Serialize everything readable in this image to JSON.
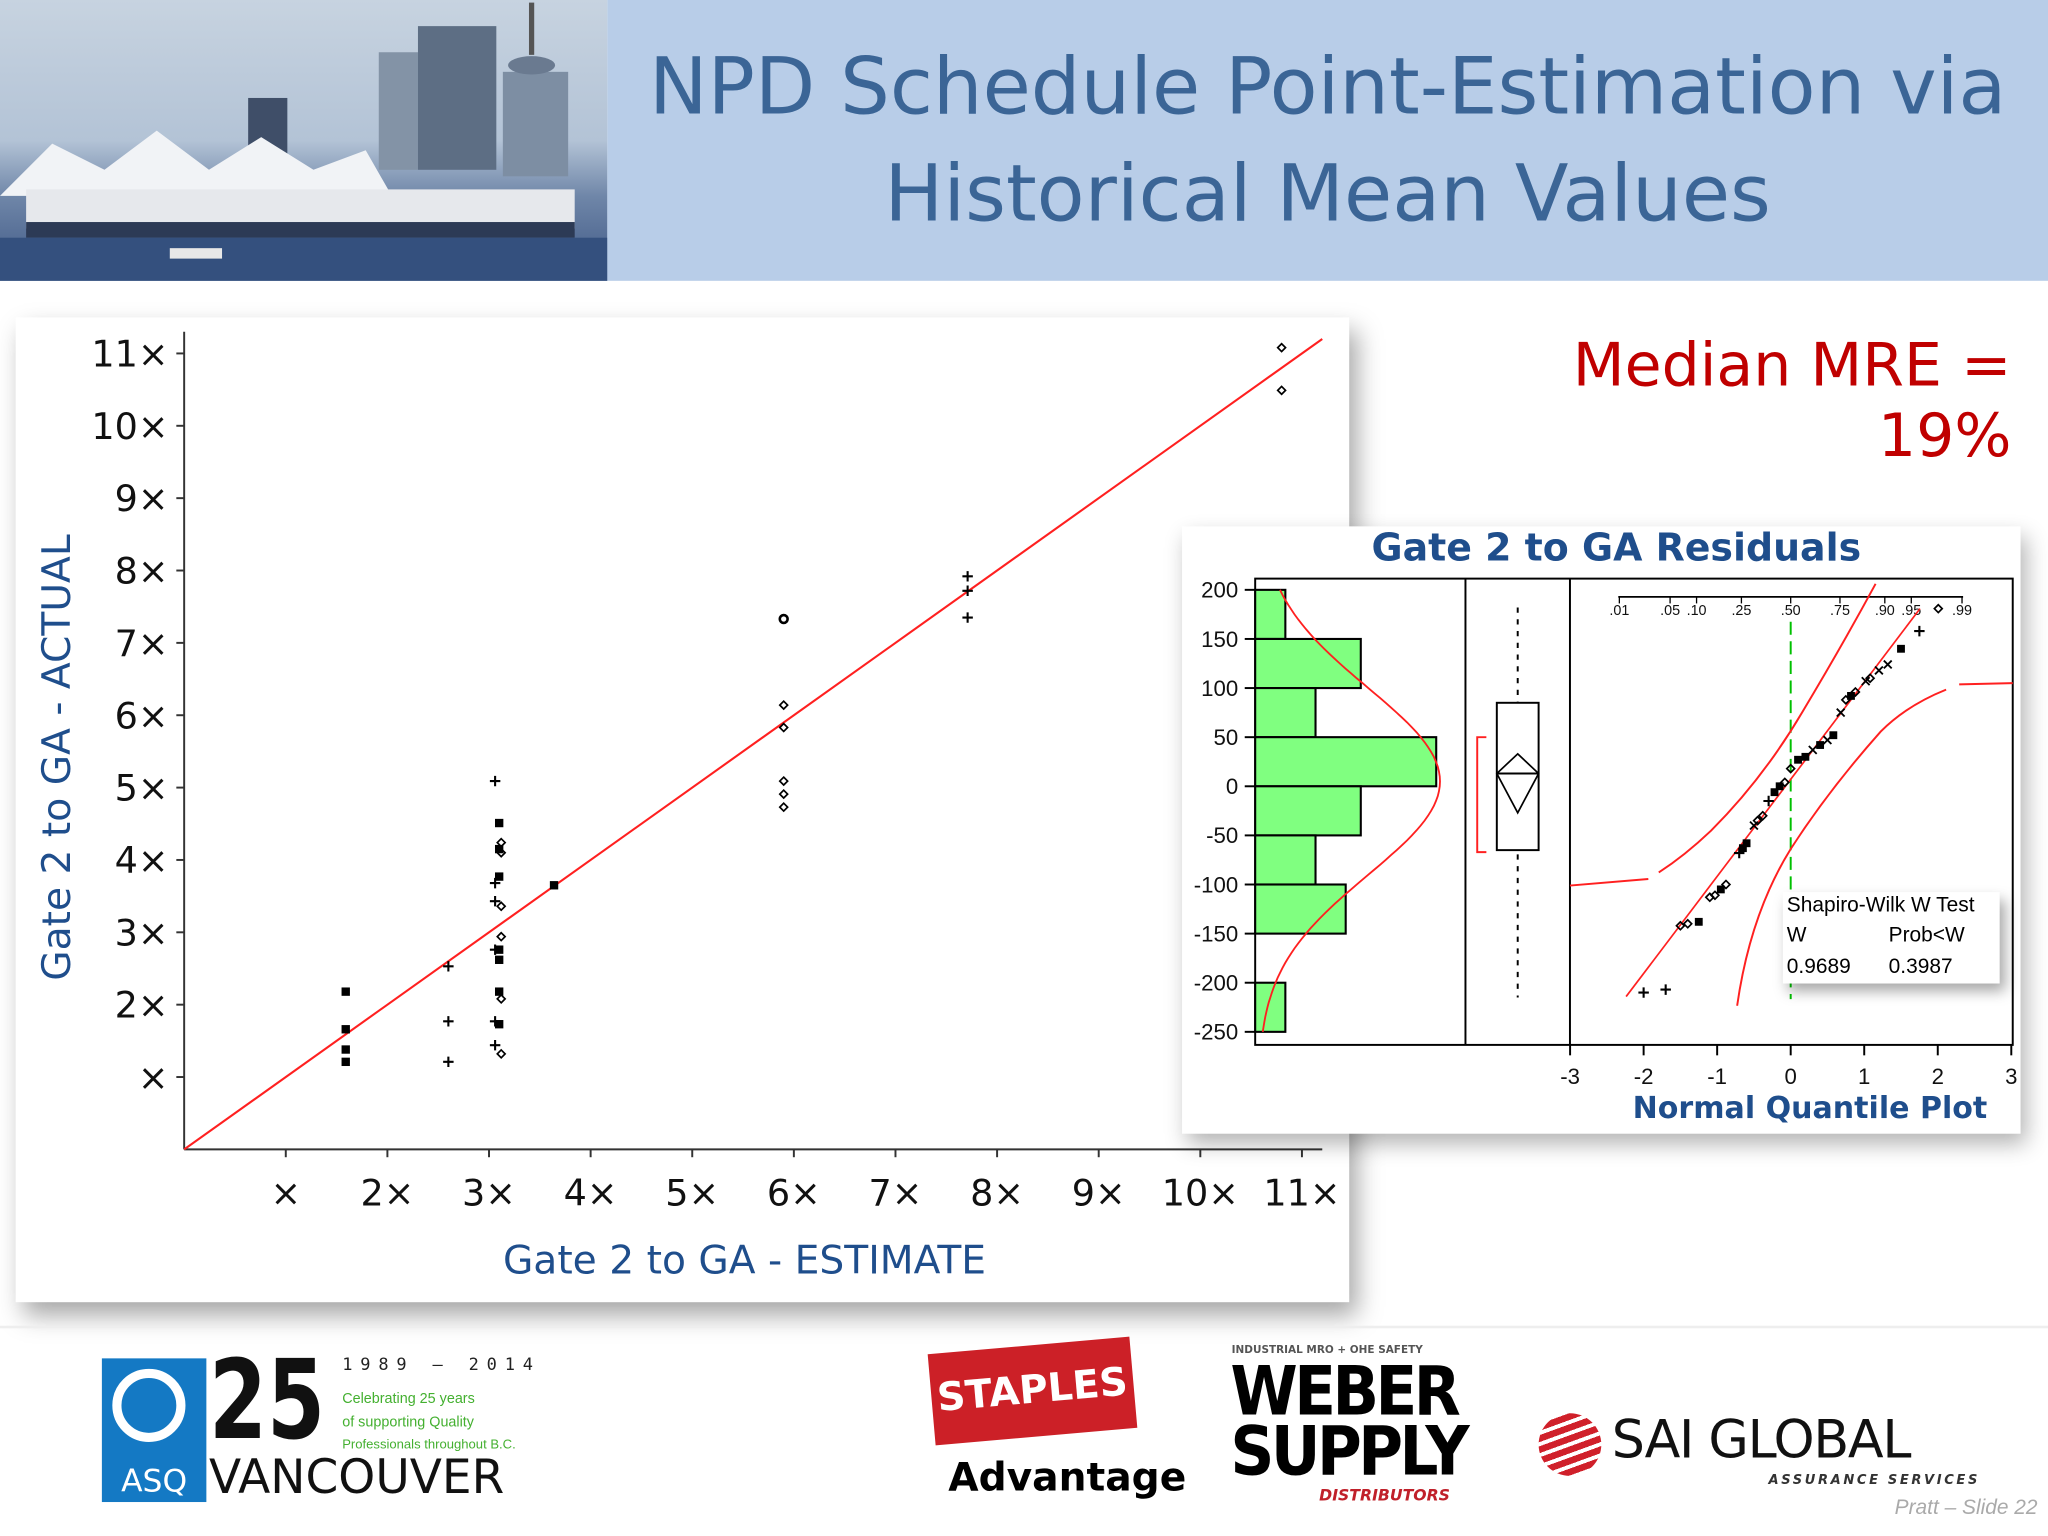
{
  "slide": {
    "title_line1": "NPD Schedule Point-Estimation via",
    "title_line2": "Historical Mean Values",
    "median_mre": "Median MRE = 19%",
    "footer_note": "Pratt – Slide 22"
  },
  "chart_data": [
    {
      "type": "scatter",
      "xlabel": "Gate 2 to GA - ESTIMATE",
      "ylabel": "Gate 2 to GA - ACTUAL",
      "xlim": [
        0,
        11.2
      ],
      "ylim": [
        0,
        11.2
      ],
      "x_tick_labels": [
        "×",
        "2×",
        "3×",
        "4×",
        "5×",
        "6×",
        "7×",
        "8×",
        "9×",
        "10×",
        "11×"
      ],
      "y_tick_labels": [
        "×",
        "2×",
        "3×",
        "4×",
        "5×",
        "6×",
        "7×",
        "8×",
        "9×",
        "10×",
        "11×"
      ],
      "reference_line": {
        "type": "y=x",
        "color": "#ff2020"
      },
      "points": [
        {
          "x": 1.59,
          "y": 2.18,
          "m": "square"
        },
        {
          "x": 1.59,
          "y": 1.66,
          "m": "square"
        },
        {
          "x": 1.59,
          "y": 1.38,
          "m": "square"
        },
        {
          "x": 1.59,
          "y": 1.21,
          "m": "square"
        },
        {
          "x": 2.6,
          "y": 2.53,
          "m": "plus"
        },
        {
          "x": 2.6,
          "y": 1.77,
          "m": "plus"
        },
        {
          "x": 2.6,
          "y": 1.21,
          "m": "plus"
        },
        {
          "x": 3.06,
          "y": 5.09,
          "m": "plus"
        },
        {
          "x": 3.1,
          "y": 4.51,
          "m": "square"
        },
        {
          "x": 3.12,
          "y": 4.24,
          "m": "diamond"
        },
        {
          "x": 3.1,
          "y": 4.15,
          "m": "square"
        },
        {
          "x": 3.12,
          "y": 4.1,
          "m": "diamond"
        },
        {
          "x": 3.1,
          "y": 3.77,
          "m": "square"
        },
        {
          "x": 3.06,
          "y": 3.68,
          "m": "plus"
        },
        {
          "x": 3.06,
          "y": 3.43,
          "m": "plus"
        },
        {
          "x": 3.12,
          "y": 3.36,
          "m": "diamond"
        },
        {
          "x": 3.12,
          "y": 2.94,
          "m": "diamond"
        },
        {
          "x": 3.1,
          "y": 2.76,
          "m": "square"
        },
        {
          "x": 3.06,
          "y": 2.76,
          "m": "plus"
        },
        {
          "x": 3.1,
          "y": 2.62,
          "m": "square"
        },
        {
          "x": 3.1,
          "y": 2.18,
          "m": "square"
        },
        {
          "x": 3.12,
          "y": 2.08,
          "m": "diamond"
        },
        {
          "x": 3.06,
          "y": 1.77,
          "m": "plus"
        },
        {
          "x": 3.1,
          "y": 1.73,
          "m": "square"
        },
        {
          "x": 3.06,
          "y": 1.44,
          "m": "plus"
        },
        {
          "x": 3.12,
          "y": 1.32,
          "m": "diamond"
        },
        {
          "x": 3.64,
          "y": 3.65,
          "m": "square"
        },
        {
          "x": 5.9,
          "y": 7.33,
          "m": "circle"
        },
        {
          "x": 5.9,
          "y": 6.14,
          "m": "diamond"
        },
        {
          "x": 5.9,
          "y": 5.83,
          "m": "diamond"
        },
        {
          "x": 5.9,
          "y": 5.09,
          "m": "diamond"
        },
        {
          "x": 5.9,
          "y": 4.91,
          "m": "diamond"
        },
        {
          "x": 5.9,
          "y": 4.73,
          "m": "diamond"
        },
        {
          "x": 7.71,
          "y": 7.92,
          "m": "plus"
        },
        {
          "x": 7.71,
          "y": 7.72,
          "m": "plus"
        },
        {
          "x": 7.71,
          "y": 7.35,
          "m": "plus"
        },
        {
          "x": 10.8,
          "y": 11.08,
          "m": "diamond"
        },
        {
          "x": 10.8,
          "y": 10.49,
          "m": "diamond"
        }
      ]
    },
    {
      "type": "bar",
      "title": "Gate 2 to GA Residuals",
      "orientation": "horizontal-histogram",
      "bin_edges": [
        200,
        150,
        100,
        50,
        0,
        -50,
        -100,
        -150,
        -200,
        -250
      ],
      "y_tick_labels": [
        "200",
        "150",
        "100",
        "50",
        "0",
        "-50",
        "-100",
        "-150",
        "-200",
        "-250"
      ],
      "counts": [
        2,
        7,
        4,
        12,
        7,
        4,
        6,
        0,
        2
      ],
      "bar_color": "#80ff80",
      "density_curve_color": "#ff2020"
    },
    {
      "type": "box",
      "q1": -65,
      "q3": 85,
      "median": 13,
      "mean": 13,
      "mean_ci": [
        -27,
        33
      ],
      "whisker_low": -215,
      "whisker_high": 182,
      "shortest_half": [
        -67,
        50
      ]
    },
    {
      "type": "scatter",
      "xlabel": "Normal Quantile Plot",
      "x_tick_labels": [
        "-3",
        "-2",
        "-1",
        "0",
        "1",
        "2",
        "3"
      ],
      "xlim": [
        -3,
        3
      ],
      "prob_tick_labels": [
        ".01",
        ".05",
        ".10",
        ".25",
        ".50",
        ".75",
        ".90",
        ".95",
        ".99"
      ],
      "prob_ticks_q": [
        -2.33,
        -1.64,
        -1.28,
        -0.67,
        0,
        0.67,
        1.28,
        1.64,
        2.33
      ],
      "points": [
        {
          "q": -2.0,
          "r": -210,
          "m": "plus"
        },
        {
          "q": -1.7,
          "r": -207,
          "m": "plus"
        },
        {
          "q": -1.5,
          "r": -142,
          "m": "diamond"
        },
        {
          "q": -1.4,
          "r": -140,
          "m": "diamond"
        },
        {
          "q": -1.25,
          "r": -138,
          "m": "square"
        },
        {
          "q": -1.1,
          "r": -113,
          "m": "diamond"
        },
        {
          "q": -1.03,
          "r": -111,
          "m": "diamond"
        },
        {
          "q": -0.95,
          "r": -105,
          "m": "square"
        },
        {
          "q": -0.88,
          "r": -100,
          "m": "diamond"
        },
        {
          "q": -0.7,
          "r": -68,
          "m": "plus"
        },
        {
          "q": -0.65,
          "r": -63,
          "m": "square"
        },
        {
          "q": -0.6,
          "r": -58,
          "m": "square"
        },
        {
          "q": -0.5,
          "r": -40,
          "m": "x"
        },
        {
          "q": -0.45,
          "r": -35,
          "m": "diamond"
        },
        {
          "q": -0.38,
          "r": -30,
          "m": "diamond"
        },
        {
          "q": -0.3,
          "r": -15,
          "m": "plus"
        },
        {
          "q": -0.22,
          "r": -6,
          "m": "square"
        },
        {
          "q": -0.15,
          "r": 0,
          "m": "square"
        },
        {
          "q": -0.08,
          "r": 4,
          "m": "diamond"
        },
        {
          "q": 0.0,
          "r": 18,
          "m": "diamond"
        },
        {
          "q": 0.1,
          "r": 27,
          "m": "square"
        },
        {
          "q": 0.2,
          "r": 30,
          "m": "square"
        },
        {
          "q": 0.3,
          "r": 37,
          "m": "x"
        },
        {
          "q": 0.4,
          "r": 42,
          "m": "square"
        },
        {
          "q": 0.5,
          "r": 47,
          "m": "x"
        },
        {
          "q": 0.58,
          "r": 52,
          "m": "square"
        },
        {
          "q": 0.68,
          "r": 75,
          "m": "x"
        },
        {
          "q": 0.75,
          "r": 88,
          "m": "diamond"
        },
        {
          "q": 0.82,
          "r": 92,
          "m": "square"
        },
        {
          "q": 0.88,
          "r": 96,
          "m": "diamond"
        },
        {
          "q": 1.02,
          "r": 107,
          "m": "x"
        },
        {
          "q": 1.08,
          "r": 110,
          "m": "diamond"
        },
        {
          "q": 1.2,
          "r": 118,
          "m": "x"
        },
        {
          "q": 1.32,
          "r": 124,
          "m": "x"
        },
        {
          "q": 1.5,
          "r": 140,
          "m": "square"
        },
        {
          "q": 1.75,
          "r": 158,
          "m": "plus"
        }
      ],
      "fit_line_color": "#ff2020",
      "reference_color": "#00c000"
    }
  ],
  "shapiro": {
    "title": "Shapiro-Wilk W Test",
    "col1": "W",
    "col2": "Prob<W",
    "w_value": "0.9689",
    "p_value": "0.3987"
  },
  "logos": {
    "asq_years": "1989 – 2014",
    "asq_number": "25",
    "asq_letters": "ASQ",
    "asq_city": "VANCOUVER",
    "asq_tag1": "Celebrating 25 years",
    "asq_tag2": "of supporting Quality",
    "asq_tag3": "Professionals throughout B.C.",
    "staples": "STAPLES",
    "staples_sub": "Advantage",
    "weber_top": "INDUSTRIAL MRO + OHE SAFETY",
    "weber1": "WEBER",
    "weber2": "SUPPLY",
    "weber3": "DISTRIBUTORS",
    "sai": "SAI GLOBAL",
    "sai_sub": "ASSURANCE SERVICES"
  }
}
